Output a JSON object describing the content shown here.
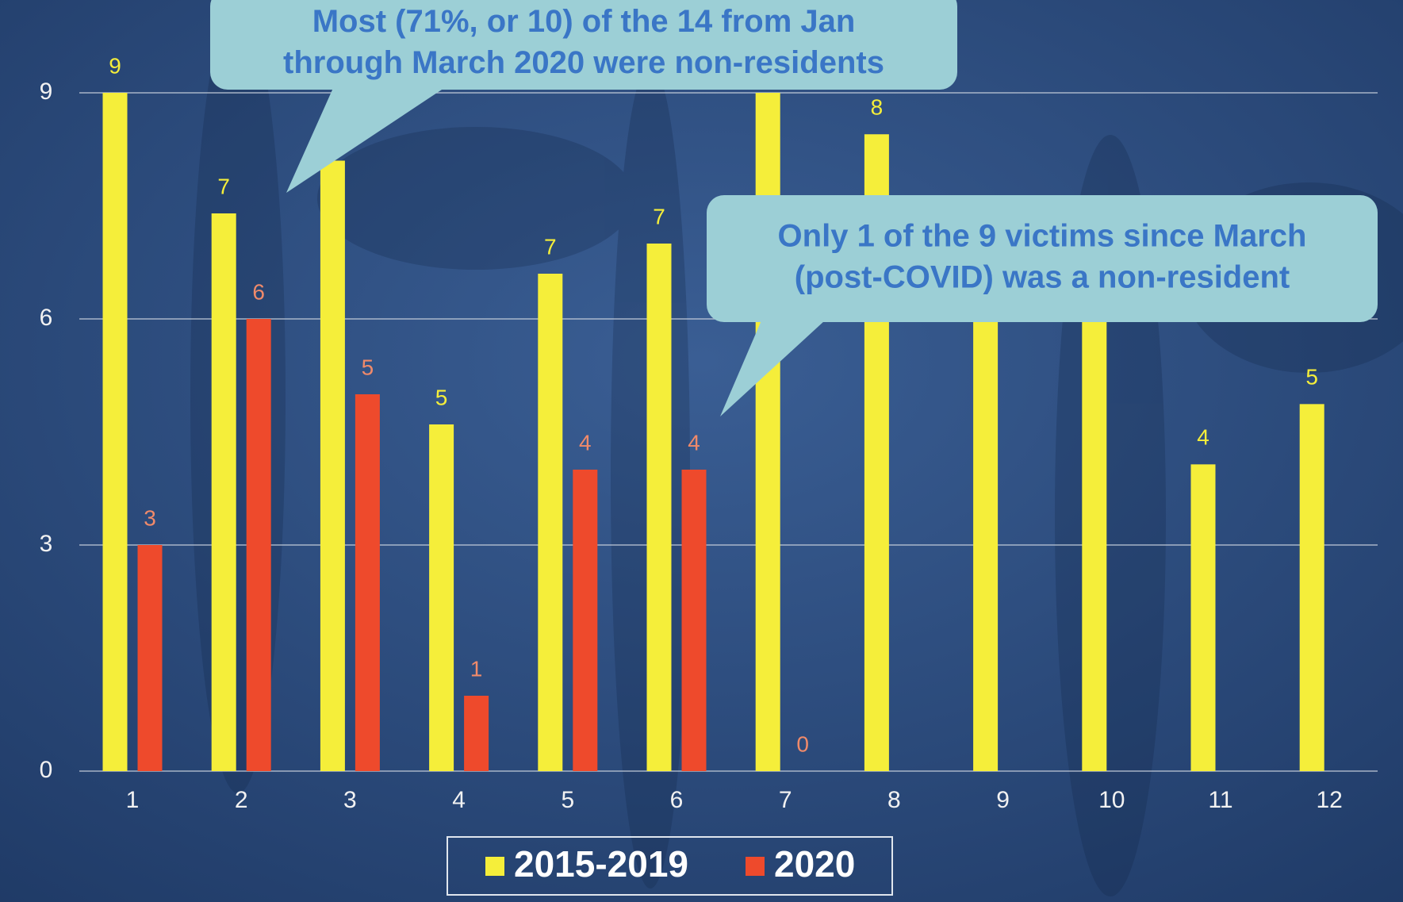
{
  "chart_data": {
    "type": "bar",
    "categories": [
      "1",
      "2",
      "3",
      "4",
      "5",
      "6",
      "7",
      "8",
      "9",
      "10",
      "11",
      "12"
    ],
    "series": [
      {
        "name": "2015-2019",
        "color": "#f5ee3a",
        "values": [
          9.0,
          7.4,
          8.1,
          4.6,
          6.6,
          7.0,
          9.0,
          8.45,
          7.2,
          7.0,
          4.07,
          4.87
        ],
        "value_labels": [
          "9",
          "7",
          null,
          "5",
          "7",
          "7",
          null,
          "8",
          null,
          null,
          "4",
          "5"
        ]
      },
      {
        "name": "2020",
        "color": "#ee4a2c",
        "values": [
          3,
          6,
          5,
          1,
          4,
          4,
          0,
          null,
          null,
          null,
          null,
          null
        ]
      }
    ],
    "ylim": [
      0,
      9.6
    ],
    "yticks": [
      0,
      3,
      6,
      9
    ],
    "grid": true,
    "legend": "bottom",
    "annotations": [
      {
        "lines": [
          "Most (71%, or 10) of the 14 from Jan",
          "through March 2020 were non-residents"
        ]
      },
      {
        "lines": [
          "Only 1 of the 9 victims since March",
          "(post-COVID) was a non-resident"
        ]
      }
    ]
  }
}
